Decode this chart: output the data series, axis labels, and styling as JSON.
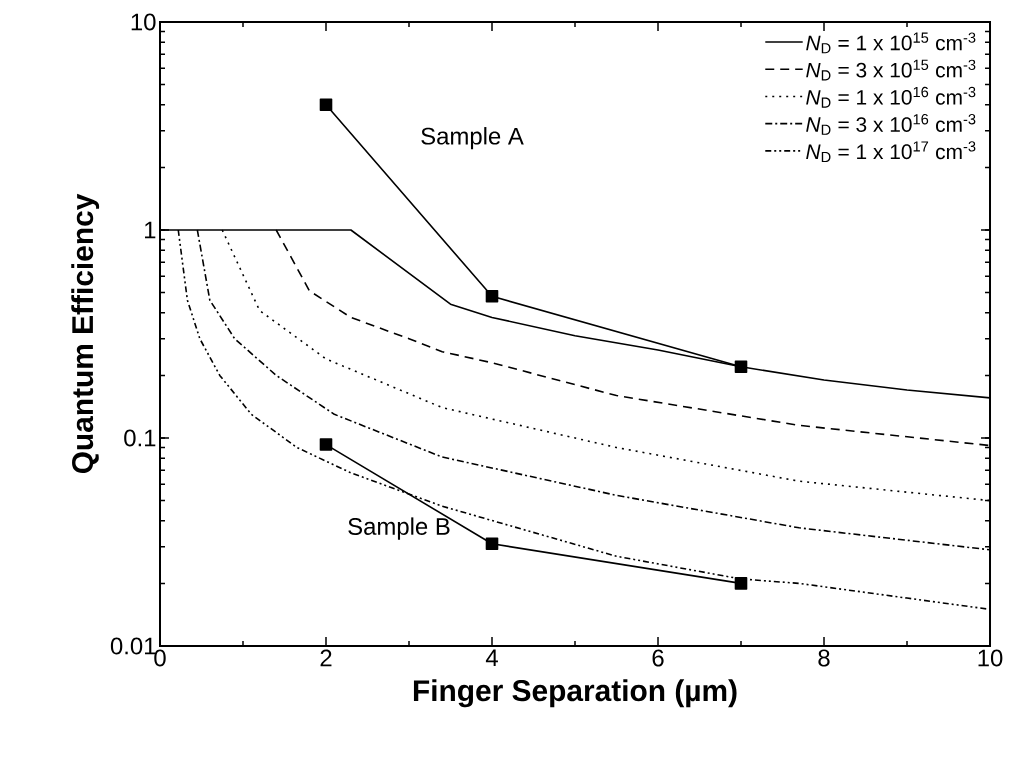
{
  "chart_data": {
    "type": "line",
    "xlabel": "Finger Separation (µm)",
    "ylabel": "Quantum Efficiency",
    "log": "y",
    "xlim": [
      0,
      10
    ],
    "ylim": [
      0.01,
      10
    ],
    "xticks": [
      0,
      2,
      4,
      6,
      8,
      10
    ],
    "yticks": [
      0.01,
      0.1,
      1,
      10
    ],
    "legend": "top right",
    "series": [
      {
        "name": "*N*$_{D}$ = 1 x 10$^{15}$ cm$^{-3}$",
        "color": "#000000",
        "line_style": "solid",
        "x": [
          0,
          2.3,
          3.5,
          4,
          5,
          6,
          7,
          8,
          9,
          10
        ],
        "values": [
          1,
          1,
          0.44,
          0.38,
          0.31,
          0.265,
          0.22,
          0.19,
          0.17,
          0.156
        ]
      },
      {
        "name": "*N*$_{D}$ = 3 x 10$^{15}$ cm$^{-3}$",
        "color": "#000000",
        "line_style": "dashed",
        "x": [
          1.4,
          1.8,
          2.3,
          3,
          3.4,
          4,
          5.5,
          7.7,
          10
        ],
        "values": [
          1,
          0.51,
          0.38,
          0.3,
          0.26,
          0.23,
          0.16,
          0.115,
          0.092
        ]
      },
      {
        "name": "*N*$_{D}$ = 1 x 10$^{16}$ cm$^{-3}$",
        "color": "#000000",
        "line_style": "dotted",
        "x": [
          0.75,
          1.2,
          2,
          3.4,
          5.5,
          7.7,
          10
        ],
        "values": [
          1,
          0.41,
          0.24,
          0.14,
          0.09,
          0.062,
          0.05
        ]
      },
      {
        "name": "*N*$_{D}$ = 3 x 10$^{16}$ cm$^{-3}$",
        "color": "#000000",
        "line_style": "dashdot",
        "x": [
          0.45,
          0.6,
          0.9,
          1.4,
          2.1,
          3.4,
          5.5,
          7.7,
          10
        ],
        "values": [
          1,
          0.46,
          0.3,
          0.2,
          0.13,
          0.081,
          0.053,
          0.037,
          0.029
        ]
      },
      {
        "name": "*N*$_{D}$ = 1 x 10$^{17}$ cm$^{-3}$",
        "color": "#000000",
        "line_style": "dashdotdot",
        "x": [
          0.22,
          0.33,
          0.48,
          0.72,
          1.1,
          1.65,
          2.3,
          3.4,
          5.5,
          7,
          7.7,
          9,
          10
        ],
        "values": [
          1,
          0.46,
          0.3,
          0.2,
          0.13,
          0.09,
          0.068,
          0.047,
          0.027,
          0.021,
          0.02,
          0.017,
          0.015
        ]
      },
      {
        "name": "Sample A",
        "color": "#000000",
        "line_style": "solid",
        "marker": "square",
        "x": [
          2,
          4,
          7
        ],
        "values": [
          4,
          0.48,
          0.22
        ]
      },
      {
        "name": "Sample B",
        "color": "#000000",
        "line_style": "solid",
        "marker": "square",
        "x": [
          2,
          4,
          7
        ],
        "values": [
          0.093,
          0.031,
          0.02
        ]
      }
    ]
  }
}
